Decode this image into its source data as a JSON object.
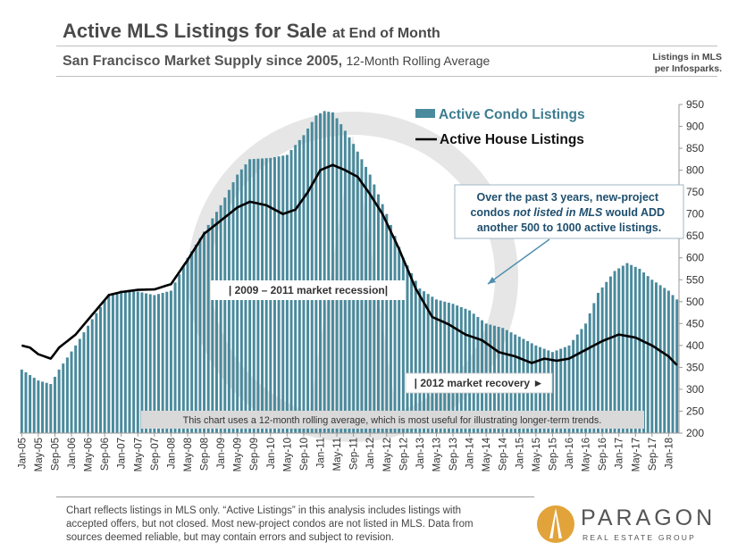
{
  "header": {
    "title_main": "Active MLS Listings for Sale",
    "title_suffix": "at End of Month",
    "subtitle_main": "San Francisco Market Supply since 2005,",
    "subtitle_suffix": "12-Month Rolling Average",
    "source_line1": "Listings in MLS",
    "source_line2": "per Infosparks."
  },
  "annotations": {
    "callout_prefix": "Over the past 3 years, new-project condos ",
    "callout_italic": "not listed in MLS",
    "callout_suffix": " would ADD another 500 to 1000 active listings.",
    "recession": "| 2009 – 2011 market recession|",
    "recovery": "| 2012 market recovery ►",
    "note": "This chart uses a 12-month rolling average, which is most useful for illustrating longer-term trends."
  },
  "footer": {
    "disclaimer": "Chart reflects listings in MLS only. “Active Listings” in this analysis includes listings with accepted offers, but not closed. Most new-project condos are not listed in MLS. Data from sources deemed reliable, but may contain errors and subject to revision.",
    "brand": "PARAGON",
    "brand_sub": "REAL ESTATE GROUP"
  },
  "colors": {
    "condo": "#4a8a9c",
    "house": "#000000",
    "callout": "#1f4f6e",
    "arrow": "#4f8fb0"
  },
  "chart_data": {
    "type": "bar+line",
    "ylim": [
      200,
      950
    ],
    "yticks": [
      200,
      250,
      300,
      350,
      400,
      450,
      500,
      550,
      600,
      650,
      700,
      750,
      800,
      850,
      900,
      950
    ],
    "x_tick_labels": [
      "Jan-05",
      "May-05",
      "Sep-05",
      "Jan-06",
      "May-06",
      "Sep-06",
      "Jan-07",
      "May-07",
      "Sep-07",
      "Jan-08",
      "May-08",
      "Sep-08",
      "Jan-09",
      "May-09",
      "Sep-09",
      "Jan-10",
      "May-10",
      "Sep-10",
      "Jan-11",
      "May-11",
      "Sep-11",
      "Jan-12",
      "May-12",
      "Sep-12",
      "Jan-13",
      "May-13",
      "Sep-13",
      "Jan-14",
      "May-14",
      "Sep-14",
      "Jan-15",
      "May-15",
      "Sep-15",
      "Jan-16",
      "May-16",
      "Sep-16",
      "Jan-17",
      "May-17",
      "Sep-17",
      "Jan-18"
    ],
    "series": [
      {
        "name": "Active Condo Listings",
        "kind": "bar",
        "anchors": [
          [
            "2005-01",
            345
          ],
          [
            "2005-05",
            320
          ],
          [
            "2005-08",
            312
          ],
          [
            "2005-10",
            345
          ],
          [
            "2006-02",
            400
          ],
          [
            "2006-06",
            460
          ],
          [
            "2006-10",
            515
          ],
          [
            "2007-01",
            525
          ],
          [
            "2007-05",
            523
          ],
          [
            "2007-09",
            515
          ],
          [
            "2008-01",
            525
          ],
          [
            "2008-05",
            600
          ],
          [
            "2008-09",
            660
          ],
          [
            "2009-01",
            720
          ],
          [
            "2009-05",
            790
          ],
          [
            "2009-08",
            825
          ],
          [
            "2010-01",
            828
          ],
          [
            "2010-05",
            835
          ],
          [
            "2010-09",
            880
          ],
          [
            "2010-12",
            925
          ],
          [
            "2011-02",
            935
          ],
          [
            "2011-04",
            932
          ],
          [
            "2011-06",
            905
          ],
          [
            "2011-09",
            860
          ],
          [
            "2012-01",
            790
          ],
          [
            "2012-05",
            700
          ],
          [
            "2012-09",
            600
          ],
          [
            "2013-01",
            530
          ],
          [
            "2013-05",
            505
          ],
          [
            "2013-09",
            495
          ],
          [
            "2014-01",
            480
          ],
          [
            "2014-05",
            450
          ],
          [
            "2014-09",
            440
          ],
          [
            "2015-01",
            420
          ],
          [
            "2015-05",
            400
          ],
          [
            "2015-09",
            385
          ],
          [
            "2016-01",
            400
          ],
          [
            "2016-05",
            450
          ],
          [
            "2016-08",
            520
          ],
          [
            "2016-12",
            570
          ],
          [
            "2017-03",
            588
          ],
          [
            "2017-06",
            575
          ],
          [
            "2017-09",
            550
          ],
          [
            "2018-01",
            525
          ],
          [
            "2018-03",
            505
          ]
        ]
      },
      {
        "name": "Active House Listings",
        "kind": "line",
        "anchors": [
          [
            "2005-01",
            400
          ],
          [
            "2005-03",
            395
          ],
          [
            "2005-05",
            380
          ],
          [
            "2005-08",
            370
          ],
          [
            "2005-10",
            395
          ],
          [
            "2006-02",
            425
          ],
          [
            "2006-06",
            470
          ],
          [
            "2006-10",
            515
          ],
          [
            "2007-01",
            522
          ],
          [
            "2007-05",
            527
          ],
          [
            "2007-09",
            528
          ],
          [
            "2008-01",
            540
          ],
          [
            "2008-05",
            595
          ],
          [
            "2008-09",
            655
          ],
          [
            "2009-01",
            685
          ],
          [
            "2009-05",
            715
          ],
          [
            "2009-08",
            728
          ],
          [
            "2009-12",
            720
          ],
          [
            "2010-04",
            700
          ],
          [
            "2010-07",
            710
          ],
          [
            "2010-10",
            750
          ],
          [
            "2011-01",
            800
          ],
          [
            "2011-04",
            812
          ],
          [
            "2011-07",
            800
          ],
          [
            "2011-10",
            785
          ],
          [
            "2012-01",
            745
          ],
          [
            "2012-04",
            700
          ],
          [
            "2012-08",
            620
          ],
          [
            "2012-12",
            530
          ],
          [
            "2013-04",
            465
          ],
          [
            "2013-08",
            448
          ],
          [
            "2013-12",
            425
          ],
          [
            "2014-04",
            412
          ],
          [
            "2014-08",
            385
          ],
          [
            "2014-12",
            375
          ],
          [
            "2015-04",
            360
          ],
          [
            "2015-07",
            370
          ],
          [
            "2015-10",
            365
          ],
          [
            "2016-01",
            370
          ],
          [
            "2016-05",
            390
          ],
          [
            "2016-09",
            410
          ],
          [
            "2017-01",
            425
          ],
          [
            "2017-05",
            418
          ],
          [
            "2017-09",
            400
          ],
          [
            "2018-01",
            375
          ],
          [
            "2018-03",
            355
          ]
        ]
      }
    ]
  }
}
